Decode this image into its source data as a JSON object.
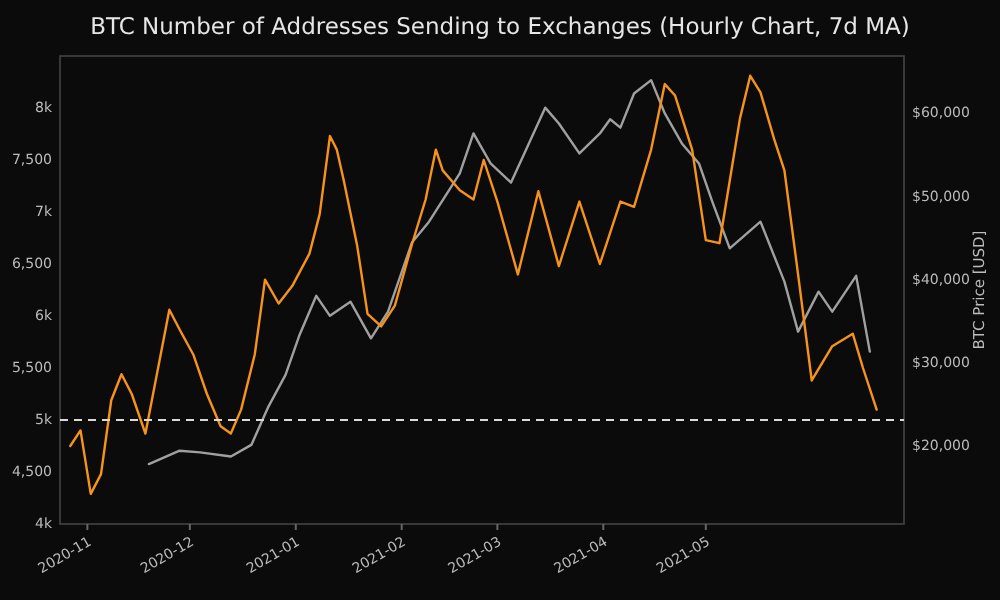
{
  "chart_data": {
    "type": "line",
    "title": "BTC Number of Addresses Sending to Exchanges (Hourly Chart, 7d MA)",
    "y2label": "BTC Price [USD]",
    "xlim": [
      "2020-10-24",
      "2021-06-28"
    ],
    "xticks": [
      {
        "value": "2020-11-01",
        "label": "2020-11"
      },
      {
        "value": "2020-12-01",
        "label": "2020-12"
      },
      {
        "value": "2021-01-01",
        "label": "2021-01"
      },
      {
        "value": "2021-02-01",
        "label": "2021-02"
      },
      {
        "value": "2021-03-01",
        "label": "2021-03"
      },
      {
        "value": "2021-04-01",
        "label": "2021-04"
      },
      {
        "value": "2021-05-01",
        "label": "2021-05"
      }
    ],
    "ylim": [
      4000,
      8500
    ],
    "yticks": [
      {
        "value": 4000,
        "label": "4k"
      },
      {
        "value": 4500,
        "label": "4,500"
      },
      {
        "value": 5000,
        "label": "5k"
      },
      {
        "value": 5500,
        "label": "5,500"
      },
      {
        "value": 6000,
        "label": "6k"
      },
      {
        "value": 6500,
        "label": "6,500"
      },
      {
        "value": 7000,
        "label": "7k"
      },
      {
        "value": 7500,
        "label": "7,500"
      },
      {
        "value": 8000,
        "label": "8k"
      }
    ],
    "y2lim": [
      10700,
      66900
    ],
    "y2ticks": [
      {
        "value": 20000,
        "label": "$20,000"
      },
      {
        "value": 30000,
        "label": "$30,000"
      },
      {
        "value": 40000,
        "label": "$40,000"
      },
      {
        "value": 50000,
        "label": "$50,000"
      },
      {
        "value": 60000,
        "label": "$60,000"
      }
    ],
    "ref_lines": [
      {
        "axis": "y",
        "value": 5000,
        "color": "#d9d9d9",
        "line_style": "dashed"
      }
    ],
    "grid": false,
    "series": [
      {
        "color": "#a0a0a0",
        "axis": "y2",
        "x": [
          "2020-11-19",
          "2020-11-28",
          "2020-12-04",
          "2020-12-13",
          "2020-12-19",
          "2020-12-24",
          "2020-12-29",
          "2021-01-02",
          "2021-01-07",
          "2021-01-11",
          "2021-01-17",
          "2021-01-23",
          "2021-01-28",
          "2021-02-04",
          "2021-02-09",
          "2021-02-18",
          "2021-02-22",
          "2021-02-27",
          "2021-03-05",
          "2021-03-15",
          "2021-03-19",
          "2021-03-25",
          "2021-03-31",
          "2021-04-03",
          "2021-04-06",
          "2021-04-10",
          "2021-04-15",
          "2021-04-19",
          "2021-04-24",
          "2021-04-29",
          "2021-05-03",
          "2021-05-08",
          "2021-05-17",
          "2021-05-24",
          "2021-05-28",
          "2021-06-03",
          "2021-06-07",
          "2021-06-14",
          "2021-06-18"
        ],
        "values": [
          17900,
          19500,
          19300,
          18800,
          20200,
          24800,
          28600,
          33300,
          38100,
          35700,
          37400,
          33000,
          36200,
          44500,
          47000,
          52800,
          57600,
          54000,
          51700,
          60700,
          58800,
          55200,
          57600,
          59300,
          58300,
          62400,
          64000,
          60000,
          56400,
          54000,
          49300,
          43800,
          47000,
          39800,
          33800,
          38600,
          36200,
          40500,
          31400
        ]
      },
      {
        "color": "#f7931a",
        "x": [
          "2020-10-27",
          "2020-10-30",
          "2020-11-02",
          "2020-11-05",
          "2020-11-08",
          "2020-11-11",
          "2020-11-14",
          "2020-11-18",
          "2020-11-21",
          "2020-11-25",
          "2020-11-28",
          "2020-12-02",
          "2020-12-06",
          "2020-12-10",
          "2020-12-13",
          "2020-12-16",
          "2020-12-20",
          "2020-12-23",
          "2020-12-27",
          "2020-12-31",
          "2021-01-05",
          "2021-01-08",
          "2021-01-11",
          "2021-01-13",
          "2021-01-15",
          "2021-01-19",
          "2021-01-22",
          "2021-01-26",
          "2021-01-30",
          "2021-02-04",
          "2021-02-08",
          "2021-02-11",
          "2021-02-13",
          "2021-02-18",
          "2021-02-22",
          "2021-02-25",
          "2021-03-01",
          "2021-03-07",
          "2021-03-13",
          "2021-03-19",
          "2021-03-25",
          "2021-03-31",
          "2021-04-06",
          "2021-04-10",
          "2021-04-15",
          "2021-04-19",
          "2021-04-22",
          "2021-04-27",
          "2021-05-01",
          "2021-05-05",
          "2021-05-08",
          "2021-05-11",
          "2021-05-14",
          "2021-05-17",
          "2021-05-21",
          "2021-05-24",
          "2021-05-28",
          "2021-06-01",
          "2021-06-07",
          "2021-06-13",
          "2021-06-16",
          "2021-06-20"
        ],
        "values": [
          4750,
          4900,
          4290,
          4480,
          5190,
          5440,
          5250,
          4870,
          5380,
          6060,
          5870,
          5630,
          5250,
          4940,
          4870,
          5100,
          5630,
          6350,
          6120,
          6290,
          6600,
          6980,
          7730,
          7600,
          7310,
          6670,
          6020,
          5900,
          6100,
          6690,
          7120,
          7600,
          7400,
          7210,
          7120,
          7500,
          7100,
          6400,
          7200,
          6480,
          7100,
          6500,
          7100,
          7050,
          7600,
          8230,
          8120,
          7600,
          6730,
          6700,
          7300,
          7900,
          8310,
          8150,
          7700,
          7400,
          6400,
          5380,
          5710,
          5830,
          5500,
          5100
        ]
      }
    ]
  }
}
